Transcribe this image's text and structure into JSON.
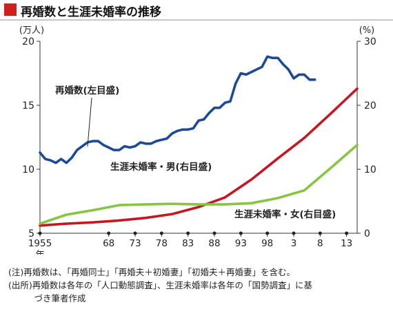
{
  "title": "再婚数と生涯未婚率の推移",
  "chart_data": {
    "type": "line",
    "y_left": {
      "unit": "(万人)",
      "range": [
        5,
        20
      ],
      "ticks": [
        "5",
        "10",
        "15",
        "20"
      ]
    },
    "y_right": {
      "unit": "(%)",
      "range": [
        0,
        30
      ],
      "ticks": [
        "0",
        "10",
        "20",
        "30"
      ]
    },
    "x": {
      "range": [
        1955,
        2015
      ],
      "ticks": [
        {
          "year": 1955,
          "label": "1955"
        },
        {
          "year": 1968,
          "label": "68"
        },
        {
          "year": 1973,
          "label": "73"
        },
        {
          "year": 1978,
          "label": "78"
        },
        {
          "year": 1983,
          "label": "83"
        },
        {
          "year": 1988,
          "label": "88"
        },
        {
          "year": 1993,
          "label": "93"
        },
        {
          "year": 1998,
          "label": "98"
        },
        {
          "year": 2003,
          "label": "3"
        },
        {
          "year": 2008,
          "label": "8"
        },
        {
          "year": 2013,
          "label": "13"
        }
      ],
      "year_label": "年"
    },
    "series": [
      {
        "name": "再婚数(左目盛)",
        "axis": "left",
        "color": "#1c4a9b",
        "points": [
          [
            1955,
            11.3
          ],
          [
            1956,
            10.8
          ],
          [
            1957,
            10.7
          ],
          [
            1958,
            10.5
          ],
          [
            1959,
            10.8
          ],
          [
            1960,
            10.5
          ],
          [
            1961,
            10.9
          ],
          [
            1962,
            11.5
          ],
          [
            1963,
            11.8
          ],
          [
            1964,
            12.1
          ],
          [
            1965,
            12.2
          ],
          [
            1966,
            12.2
          ],
          [
            1967,
            11.9
          ],
          [
            1968,
            11.7
          ],
          [
            1969,
            11.5
          ],
          [
            1970,
            11.5
          ],
          [
            1971,
            11.8
          ],
          [
            1972,
            11.7
          ],
          [
            1973,
            11.8
          ],
          [
            1974,
            12.1
          ],
          [
            1975,
            12.0
          ],
          [
            1976,
            12.0
          ],
          [
            1977,
            12.2
          ],
          [
            1978,
            12.3
          ],
          [
            1979,
            12.4
          ],
          [
            1980,
            12.8
          ],
          [
            1981,
            13.0
          ],
          [
            1982,
            13.1
          ],
          [
            1983,
            13.1
          ],
          [
            1984,
            13.2
          ],
          [
            1985,
            13.8
          ],
          [
            1986,
            13.9
          ],
          [
            1987,
            14.4
          ],
          [
            1988,
            14.8
          ],
          [
            1989,
            14.8
          ],
          [
            1990,
            15.2
          ],
          [
            1991,
            15.3
          ],
          [
            1992,
            16.7
          ],
          [
            1993,
            17.5
          ],
          [
            1994,
            17.4
          ],
          [
            1995,
            17.6
          ],
          [
            1996,
            17.8
          ],
          [
            1997,
            18.0
          ],
          [
            1998,
            18.8
          ],
          [
            1999,
            18.7
          ],
          [
            2000,
            18.7
          ],
          [
            2001,
            18.2
          ],
          [
            2002,
            17.8
          ],
          [
            2003,
            17.1
          ],
          [
            2004,
            17.4
          ],
          [
            2005,
            17.4
          ],
          [
            2006,
            17.0
          ],
          [
            2007,
            17.0
          ]
        ]
      },
      {
        "name": "生涯未婚率・男(右目盛)",
        "axis": "right",
        "color": "#c8161e",
        "points": [
          [
            1955,
            1.2
          ],
          [
            1960,
            1.5
          ],
          [
            1965,
            1.7
          ],
          [
            1970,
            2.0
          ],
          [
            1975,
            2.4
          ],
          [
            1980,
            3.0
          ],
          [
            1985,
            4.1
          ],
          [
            1990,
            5.6
          ],
          [
            1995,
            8.4
          ],
          [
            2000,
            11.7
          ],
          [
            2005,
            14.9
          ],
          [
            2010,
            18.7
          ],
          [
            2015,
            22.6
          ]
        ]
      },
      {
        "name": "生涯未婚率・女(右目盛)",
        "axis": "right",
        "color": "#86c540",
        "points": [
          [
            1955,
            1.5
          ],
          [
            1960,
            2.9
          ],
          [
            1965,
            3.6
          ],
          [
            1970,
            4.4
          ],
          [
            1975,
            4.5
          ],
          [
            1980,
            4.6
          ],
          [
            1985,
            4.5
          ],
          [
            1990,
            4.5
          ],
          [
            1995,
            4.7
          ],
          [
            2000,
            5.5
          ],
          [
            2005,
            6.7
          ],
          [
            2010,
            10.2
          ],
          [
            2015,
            13.8
          ]
        ]
      }
    ],
    "labels": [
      {
        "text": "再婚数(左目盛)"
      },
      {
        "text": "生涯未婚率・男(右目盛)"
      },
      {
        "text": "生涯未婚率・女(右目盛)"
      }
    ]
  },
  "notes": [
    "(注)再婚数は、「再婚同士」「再婚夫＋初婚妻」「初婚夫＋再婚妻」を含む。",
    "(出所)再婚数は各年の「人口動態調査」、生涯未婚率は各年の「国勢調査」に基",
    "　　　づき筆者作成"
  ]
}
